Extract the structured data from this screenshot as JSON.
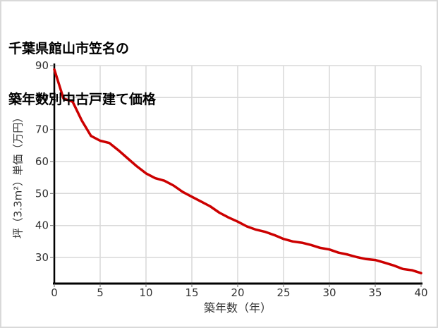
{
  "title": {
    "line1": "千葉県館山市笠名の",
    "line2": "築年数別中古戸建て価格"
  },
  "chart_data": {
    "type": "line",
    "title": "千葉県館山市笠名の築年数別中古戸建て価格",
    "xlabel": "築年数（年）",
    "ylabel": "坪（3.3m²）単価（万円）",
    "x": [
      0,
      1,
      2,
      3,
      4,
      5,
      6,
      7,
      8,
      9,
      10,
      11,
      12,
      13,
      14,
      15,
      16,
      17,
      18,
      19,
      20,
      21,
      22,
      23,
      24,
      25,
      26,
      27,
      28,
      29,
      30,
      31,
      32,
      33,
      34,
      35,
      36,
      37,
      38,
      39,
      40
    ],
    "values": [
      88.8,
      79.7,
      78.7,
      72.8,
      68.0,
      66.5,
      65.8,
      63.5,
      61.0,
      58.5,
      56.3,
      54.8,
      54.0,
      52.5,
      50.5,
      49.0,
      47.5,
      46.0,
      44.0,
      42.5,
      41.2,
      39.7,
      38.7,
      38.0,
      37.0,
      35.8,
      35.0,
      34.6,
      33.9,
      33.0,
      32.5,
      31.5,
      30.9,
      30.1,
      29.5,
      29.2,
      28.4,
      27.5,
      26.4,
      26.0,
      25.1
    ],
    "xticks": [
      0,
      5,
      10,
      15,
      20,
      25,
      30,
      35,
      40
    ],
    "yticks": [
      30,
      40,
      50,
      60,
      70,
      80,
      90
    ],
    "xlim": [
      0,
      40
    ],
    "ylim": [
      22,
      90
    ],
    "grid": true,
    "legend_position": "none",
    "line_color": "#cc0000"
  },
  "colors": {
    "line": "#cc0000",
    "grid": "#d9d9d9",
    "axis": "#000000",
    "tick_label": "#333333",
    "background": "#ffffff",
    "border": "#d9d9d9"
  }
}
